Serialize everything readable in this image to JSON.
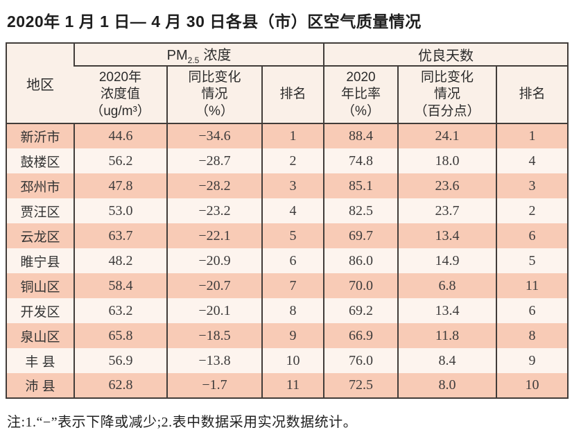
{
  "title": "2020年 1 月 1 日— 4 月 30 日各县（市）区空气质量情况",
  "table": {
    "header": {
      "region": "地区",
      "pm25_group": {
        "prefix": "PM",
        "sub": "2.5",
        "suffix": "浓度"
      },
      "good_days_group": "优良天数",
      "col_pm_value": [
        "2020年",
        "浓度值",
        "（ug/m³）"
      ],
      "col_pm_change": [
        "同比变化",
        "情况",
        "（%）"
      ],
      "col_pm_rank": "排名",
      "col_gd_ratio": [
        "2020",
        "年比率",
        "（%）"
      ],
      "col_gd_change": [
        "同比变化",
        "情况",
        "（百分点）"
      ],
      "col_gd_rank": "排名"
    },
    "rows": [
      {
        "region": "新沂市",
        "pm_value": "44.6",
        "pm_change": "−34.6",
        "pm_rank": "1",
        "gd_ratio": "88.4",
        "gd_change": "24.1",
        "gd_rank": "1"
      },
      {
        "region": "鼓楼区",
        "pm_value": "56.2",
        "pm_change": "−28.7",
        "pm_rank": "2",
        "gd_ratio": "74.8",
        "gd_change": "18.0",
        "gd_rank": "4"
      },
      {
        "region": "邳州市",
        "pm_value": "47.8",
        "pm_change": "−28.2",
        "pm_rank": "3",
        "gd_ratio": "85.1",
        "gd_change": "23.6",
        "gd_rank": "3"
      },
      {
        "region": "贾汪区",
        "pm_value": "53.0",
        "pm_change": "−23.2",
        "pm_rank": "4",
        "gd_ratio": "82.5",
        "gd_change": "23.7",
        "gd_rank": "2"
      },
      {
        "region": "云龙区",
        "pm_value": "63.7",
        "pm_change": "−22.1",
        "pm_rank": "5",
        "gd_ratio": "69.7",
        "gd_change": "13.4",
        "gd_rank": "6"
      },
      {
        "region": "睢宁县",
        "pm_value": "48.2",
        "pm_change": "−20.9",
        "pm_rank": "6",
        "gd_ratio": "86.0",
        "gd_change": "14.9",
        "gd_rank": "5"
      },
      {
        "region": "铜山区",
        "pm_value": "58.4",
        "pm_change": "−20.7",
        "pm_rank": "7",
        "gd_ratio": "70.0",
        "gd_change": "6.8",
        "gd_rank": "11"
      },
      {
        "region": "开发区",
        "pm_value": "63.2",
        "pm_change": "−20.1",
        "pm_rank": "8",
        "gd_ratio": "69.2",
        "gd_change": "13.4",
        "gd_rank": "6"
      },
      {
        "region": "泉山区",
        "pm_value": "65.8",
        "pm_change": "−18.5",
        "pm_rank": "9",
        "gd_ratio": "66.9",
        "gd_change": "11.8",
        "gd_rank": "8"
      },
      {
        "region": "丰 县",
        "pm_value": "56.9",
        "pm_change": "−13.8",
        "pm_rank": "10",
        "gd_ratio": "76.0",
        "gd_change": "8.4",
        "gd_rank": "9"
      },
      {
        "region": "沛 县",
        "pm_value": "62.8",
        "pm_change": "−1.7",
        "pm_rank": "11",
        "gd_ratio": "72.5",
        "gd_change": "8.0",
        "gd_rank": "10"
      }
    ]
  },
  "note": "注:1.“−”表示下降或减少;2.表中数据采用实况数据统计。",
  "colors": {
    "row_pink": "#f8cbb6",
    "row_light": "#fdf4ee",
    "header_bg": "#faf0e8",
    "border": "#413c39"
  }
}
